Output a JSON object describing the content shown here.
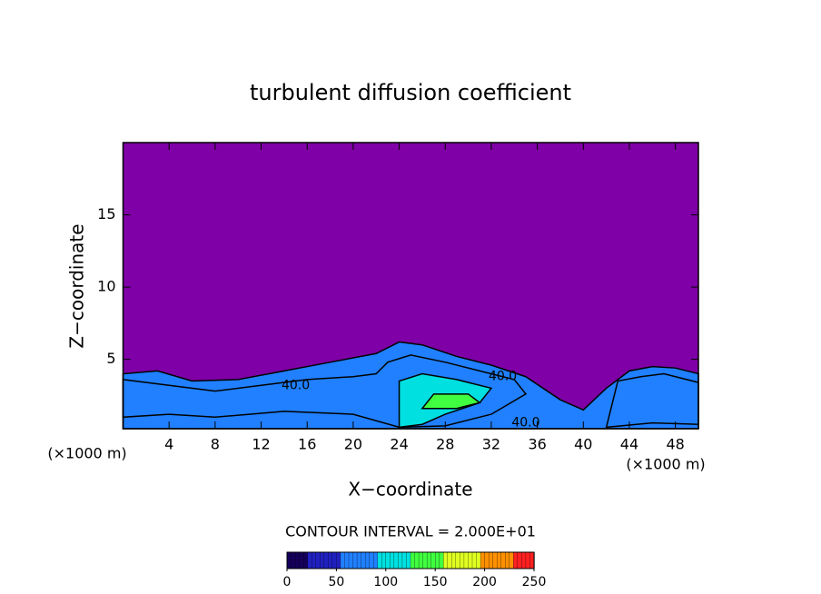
{
  "chart_data": {
    "type": "contour",
    "title": "turbulent diffusion coefficient",
    "x_label": "X−coordinate",
    "y_label": "Z−coordinate",
    "x_unit_left": "(×1000 m)",
    "x_unit_right": "(×1000 m)",
    "contour_interval": "CONTOUR INTERVAL = 2.000E+01",
    "xlim": [
      0,
      50
    ],
    "ylim": [
      0.2,
      20
    ],
    "xticks": [
      4,
      8,
      12,
      16,
      20,
      24,
      28,
      32,
      36,
      40,
      44,
      48
    ],
    "yticks": [
      5,
      10,
      15
    ],
    "background_color": "#7f00a6",
    "colormap": [
      "#14005a",
      "#2020c0",
      "#2080ff",
      "#00e0e0",
      "#40ff40",
      "#e0ff20",
      "#ff9000",
      "#ff2020"
    ],
    "colorbar_lim": [
      0,
      250
    ],
    "colorbar_ticks": [
      0,
      50,
      100,
      150,
      200,
      250
    ],
    "regions": [
      {
        "level": 20,
        "points": [
          [
            0,
            0.2
          ],
          [
            0,
            4
          ],
          [
            3,
            4.2
          ],
          [
            6,
            3.5
          ],
          [
            10,
            3.6
          ],
          [
            14,
            4.2
          ],
          [
            18,
            4.8
          ],
          [
            22,
            5.4
          ],
          [
            24,
            6.2
          ],
          [
            26,
            6.0
          ],
          [
            29,
            5.2
          ],
          [
            32,
            4.6
          ],
          [
            35,
            3.8
          ],
          [
            38,
            2.2
          ],
          [
            40,
            1.5
          ],
          [
            42,
            3
          ],
          [
            44,
            4.2
          ],
          [
            46,
            4.5
          ],
          [
            48,
            4.4
          ],
          [
            50,
            4
          ],
          [
            50,
            0.2
          ]
        ]
      },
      {
        "level": 40,
        "points": [
          [
            0,
            1
          ],
          [
            0,
            3.6
          ],
          [
            4,
            3.2
          ],
          [
            8,
            2.8
          ],
          [
            12,
            3.2
          ],
          [
            16,
            3.6
          ],
          [
            20,
            3.8
          ],
          [
            22,
            4
          ],
          [
            23,
            4.8
          ],
          [
            25,
            5.3
          ],
          [
            28,
            4.8
          ],
          [
            31,
            4.2
          ],
          [
            34,
            3.6
          ],
          [
            35,
            2.6
          ],
          [
            32,
            1.2
          ],
          [
            28,
            0.4
          ],
          [
            24,
            0.3
          ],
          [
            20,
            1.2
          ],
          [
            14,
            1.4
          ],
          [
            8,
            1.0
          ],
          [
            4,
            1.2
          ]
        ]
      },
      {
        "level": 40,
        "points": [
          [
            42,
            0.3
          ],
          [
            43,
            3.5
          ],
          [
            45,
            3.8
          ],
          [
            47,
            4
          ],
          [
            50,
            3.4
          ],
          [
            50,
            0.5
          ],
          [
            46,
            0.6
          ]
        ]
      },
      {
        "level": 80,
        "points": [
          [
            24,
            0.3
          ],
          [
            24,
            3.5
          ],
          [
            26,
            4
          ],
          [
            29,
            3.6
          ],
          [
            32,
            3
          ],
          [
            31,
            2
          ],
          [
            28,
            1.2
          ],
          [
            26,
            0.5
          ]
        ]
      },
      {
        "level": 120,
        "points": [
          [
            26,
            1.6
          ],
          [
            27,
            2.6
          ],
          [
            30,
            2.6
          ],
          [
            31,
            2
          ],
          [
            29,
            1.6
          ]
        ]
      }
    ],
    "contour_labels": [
      {
        "x": 15,
        "z": 3.2,
        "label": "40.0"
      },
      {
        "x": 33,
        "z": 3.8,
        "label": "40.0"
      },
      {
        "x": 35,
        "z": 0.6,
        "label": "40.0"
      }
    ]
  }
}
